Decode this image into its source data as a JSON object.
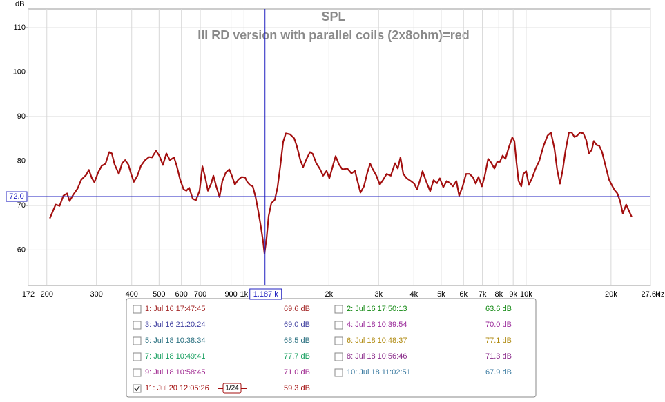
{
  "chart_data": {
    "type": "line",
    "title": "SPL",
    "subtitle": "III RD version with parallel coils (2x8ohm)=red",
    "y_label": "dB",
    "x_label": "Hz",
    "log_x": true,
    "grid": true,
    "color": "#a30f0f",
    "xlim": [
      172,
      27600
    ],
    "ylim": [
      52,
      114.2
    ],
    "xticks": [
      172,
      200,
      300,
      400,
      500,
      600,
      700,
      900,
      {
        "value": 1000,
        "label": "1k"
      },
      {
        "value": 2000,
        "label": "2k"
      },
      {
        "value": 3000,
        "label": "3k"
      },
      {
        "value": 4000,
        "label": "4k"
      },
      {
        "value": 5000,
        "label": "5k"
      },
      {
        "value": 6000,
        "label": "6k"
      },
      {
        "value": 7000,
        "label": "7k"
      },
      {
        "value": 8000,
        "label": "8k"
      },
      {
        "value": 9000,
        "label": "9k"
      },
      {
        "value": 10000,
        "label": "10k"
      },
      {
        "value": 20000,
        "label": "20k"
      },
      {
        "value": 27600,
        "label": "27.6k"
      }
    ],
    "yticks": [
      60,
      70,
      80,
      90,
      100,
      110
    ],
    "cursor": {
      "x": {
        "value": 1187,
        "label": "1.187 k"
      },
      "y": {
        "value": 72,
        "label": "72.0"
      },
      "color": "#2020c0"
    },
    "x": [
      205,
      215,
      222,
      229,
      236,
      241,
      247,
      257,
      265,
      276,
      282,
      289,
      295,
      304,
      313,
      323,
      333,
      340,
      348,
      360,
      370,
      379,
      389,
      398,
      407,
      419,
      431,
      446,
      461,
      472,
      488,
      502,
      516,
      531,
      546,
      565,
      578,
      594,
      611,
      625,
      639,
      658,
      676,
      696,
      712,
      728,
      745,
      766,
      779,
      797,
      819,
      838,
      862,
      887,
      907,
      928,
      954,
      981,
      1009,
      1027,
      1050,
      1074,
      1099,
      1123,
      1149,
      1169,
      1182,
      1202,
      1223,
      1250,
      1286,
      1315,
      1345,
      1376,
      1407,
      1456,
      1506,
      1540,
      1584,
      1620,
      1667,
      1714,
      1753,
      1803,
      1854,
      1907,
      1962,
      2007,
      2053,
      2112,
      2172,
      2234,
      2324,
      2404,
      2473,
      2530,
      2587,
      2661,
      2737,
      2800,
      2862,
      2945,
      3029,
      3115,
      3204,
      3314,
      3429,
      3507,
      3586,
      3669,
      3773,
      3903,
      4014,
      4106,
      4200,
      4295,
      4418,
      4570,
      4700,
      4835,
      4945,
      5087,
      5232,
      5382,
      5504,
      5662,
      5791,
      5957,
      6127,
      6302,
      6483,
      6630,
      6780,
      6974,
      7133,
      7337,
      7504,
      7718,
      7894,
      8073,
      8257,
      8445,
      8686,
      8934,
      9088,
      9243,
      9400,
      9613,
      9778,
      10002,
      10229,
      10522,
      10823,
      11132,
      11514,
      11908,
      12248,
      12599,
      12886,
      13180,
      13481,
      13789,
      14183,
      14507,
      14838,
      15177,
      15523,
      15967,
      16333,
      16705,
      17081,
      17372,
      17768,
      18180,
      18593,
      19126,
      19677,
      20124,
      20571,
      21053,
      21534,
      22016,
      22635,
      23151,
      23684
    ],
    "values": [
      67.1,
      70.2,
      69.9,
      72.2,
      72.7,
      71.0,
      72.2,
      73.8,
      75.8,
      76.9,
      78.0,
      76.1,
      75.2,
      77.4,
      78.9,
      79.4,
      82.0,
      81.7,
      79.2,
      77.1,
      79.5,
      80.2,
      79.2,
      77.1,
      75.3,
      76.7,
      78.9,
      80.2,
      80.9,
      80.8,
      82.3,
      81.1,
      79.1,
      81.7,
      80.2,
      80.8,
      78.8,
      75.8,
      73.6,
      73.3,
      74.0,
      71.5,
      71.2,
      73.3,
      78.8,
      76.4,
      73.3,
      75.0,
      76.7,
      74.3,
      71.9,
      75.5,
      77.4,
      78.1,
      76.6,
      74.7,
      75.8,
      76.4,
      76.3,
      75.3,
      74.6,
      74.3,
      71.9,
      68.8,
      65.0,
      61.9,
      59.2,
      62.6,
      67.6,
      70.5,
      71.3,
      74.1,
      78.9,
      84.3,
      86.2,
      86.0,
      85.1,
      83.3,
      80.2,
      78.6,
      80.5,
      82.0,
      81.6,
      79.5,
      78.3,
      76.7,
      77.8,
      76.1,
      78.3,
      81.1,
      79.2,
      78.1,
      78.3,
      77.2,
      77.8,
      75.3,
      72.9,
      74.3,
      77.4,
      79.4,
      78.1,
      76.7,
      74.7,
      75.8,
      77.1,
      76.7,
      79.5,
      78.3,
      80.8,
      77.1,
      76.1,
      75.5,
      74.9,
      73.6,
      75.5,
      77.7,
      75.5,
      73.2,
      75.7,
      75.0,
      76.1,
      74.1,
      75.5,
      75.0,
      74.3,
      75.5,
      72.2,
      74.3,
      77.1,
      77.1,
      76.3,
      74.9,
      76.4,
      74.3,
      76.6,
      80.5,
      79.7,
      78.3,
      79.8,
      79.8,
      81.2,
      80.5,
      83.1,
      85.3,
      84.5,
      79.7,
      75.5,
      74.3,
      77.1,
      77.7,
      74.6,
      76.3,
      78.4,
      80.0,
      83.3,
      85.7,
      86.4,
      82.8,
      78.0,
      74.9,
      78.0,
      82.3,
      86.4,
      86.4,
      85.4,
      85.7,
      86.4,
      86.2,
      84.7,
      81.7,
      82.5,
      84.5,
      83.6,
      83.4,
      82.0,
      78.9,
      75.8,
      74.6,
      73.5,
      72.7,
      71.0,
      68.2,
      70.2,
      68.8,
      67.4
    ]
  },
  "measurements": [
    {
      "name": "1: Jul 16 17:47:45",
      "readout": "69.6 dB",
      "color": "#a52a2a",
      "checked": false
    },
    {
      "name": "2: Jul 16 17:50:13",
      "readout": "63.6 dB",
      "color": "#118811",
      "checked": false
    },
    {
      "name": "3: Jul 16 21:20:24",
      "readout": "69.0 dB",
      "color": "#4040a0",
      "checked": false
    },
    {
      "name": "4: Jul 18 10:39:54",
      "readout": "70.0 dB",
      "color": "#9a2a9a",
      "checked": false
    },
    {
      "name": "5: Jul 18 10:38:34",
      "readout": "68.5 dB",
      "color": "#2a7080",
      "checked": false
    },
    {
      "name": "6: Jul 18 10:48:37",
      "readout": "77.1 dB",
      "color": "#b08a10",
      "checked": false
    },
    {
      "name": "7: Jul 18 10:49:41",
      "readout": "77.7 dB",
      "color": "#18a060",
      "checked": false
    },
    {
      "name": "8: Jul 18 10:56:46",
      "readout": "71.3 dB",
      "color": "#8a2a8a",
      "checked": false
    },
    {
      "name": "9: Jul 18 10:58:45",
      "readout": "71.0 dB",
      "color": "#a02a90",
      "checked": false
    },
    {
      "name": "10: Jul 18 11:02:51",
      "readout": "67.9 dB",
      "color": "#3a7aa0",
      "checked": false
    },
    {
      "name": "11: Jul 20 12:05:26",
      "readout": "59.3 dB",
      "color": "#a30f0f",
      "checked": true,
      "smoothing": "1/24"
    }
  ]
}
